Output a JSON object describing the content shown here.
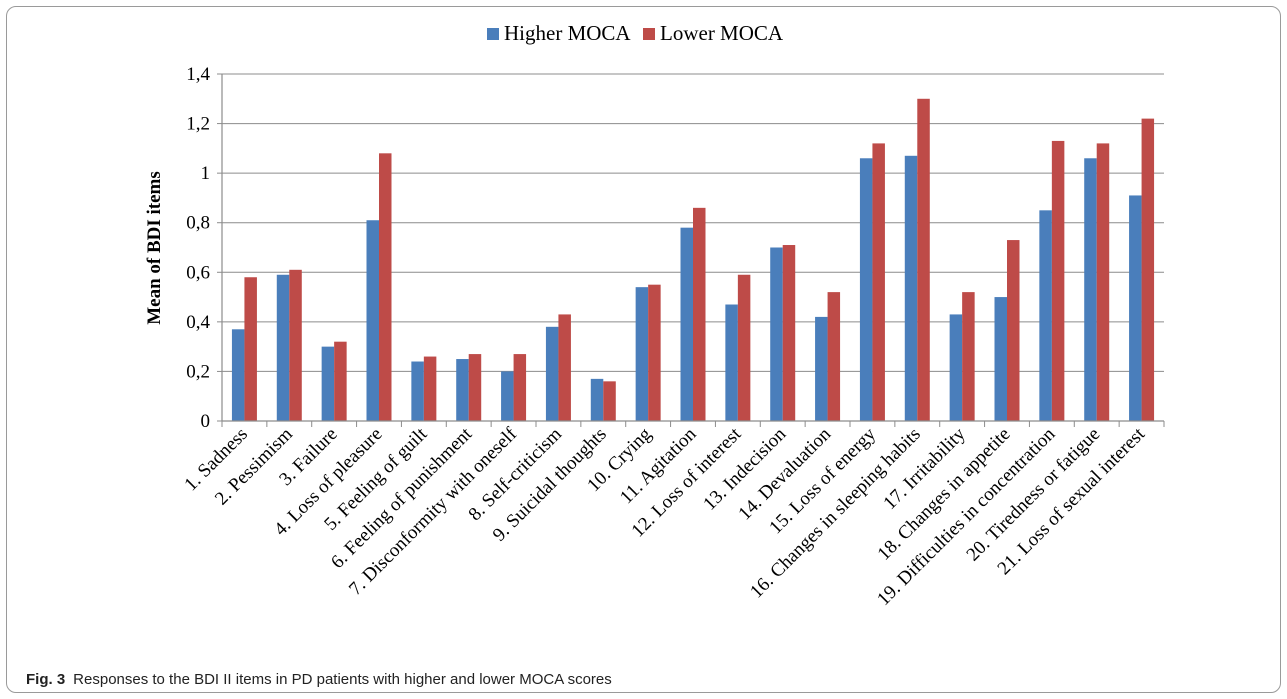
{
  "chart_data": {
    "type": "bar",
    "title": "",
    "xlabel": "",
    "ylabel": "Mean of BDI items",
    "ylim": [
      0,
      1.4
    ],
    "yticks": [
      "0",
      "0,2",
      "0,4",
      "0,6",
      "0,8",
      "1",
      "1,2",
      "1,4"
    ],
    "ytick_values": [
      0,
      0.2,
      0.4,
      0.6,
      0.8,
      1.0,
      1.2,
      1.4
    ],
    "grid": true,
    "legend_position": "top-center",
    "categories": [
      "1. Sadness",
      "2. Pessimism",
      "3. Failure",
      "4. Loss of pleasure",
      "5. Feeling of guilt",
      "6. Feeling of punishment",
      "7. Disconformity with oneself",
      "8. Self-criticism",
      "9. Suicidal thoughts",
      "10. Crying",
      "11. Agitation",
      "12. Loss of interest",
      "13. Indecision",
      "14. Devaluation",
      "15. Loss of energy",
      "16. Changes in sleeping habits",
      "17. Irritability",
      "18. Changes in appetite",
      "19. Difficulties in concentration",
      "20. Tiredness or fatigue",
      "21. Loss of sexual interest"
    ],
    "series": [
      {
        "name": "Higher MOCA",
        "color": "#4a7ebb",
        "values": [
          0.37,
          0.59,
          0.3,
          0.81,
          0.24,
          0.25,
          0.2,
          0.38,
          0.17,
          0.54,
          0.78,
          0.47,
          0.7,
          0.42,
          1.06,
          1.07,
          0.43,
          0.5,
          0.85,
          1.06,
          0.91
        ]
      },
      {
        "name": "Lower MOCA",
        "color": "#be4b48",
        "values": [
          0.58,
          0.61,
          0.32,
          1.08,
          0.26,
          0.27,
          0.27,
          0.43,
          0.16,
          0.55,
          0.86,
          0.59,
          0.71,
          0.52,
          1.12,
          1.3,
          0.52,
          0.73,
          1.13,
          1.12,
          1.22
        ]
      }
    ]
  },
  "caption": {
    "label": "Fig. 3",
    "text": "Responses to the BDI II items in PD patients with higher and lower MOCA scores"
  }
}
